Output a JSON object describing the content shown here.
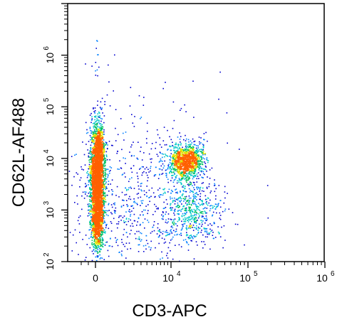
{
  "chart_data": {
    "type": "scatter",
    "subtype": "flow-cytometry-density-dot-plot",
    "title": "",
    "xlabel": "CD3-APC",
    "ylabel": "CD62L-AF488",
    "x_scale": "biexponential",
    "y_scale": "log",
    "xlim": [
      -300,
      1000000
    ],
    "ylim": [
      100,
      10000000
    ],
    "x_ticks": [
      {
        "base": "0",
        "exp": ""
      },
      {
        "base": "10",
        "exp": "4"
      },
      {
        "base": "10",
        "exp": "5"
      },
      {
        "base": "10",
        "exp": "6"
      }
    ],
    "y_ticks": [
      {
        "base": "10",
        "exp": "2"
      },
      {
        "base": "10",
        "exp": "3"
      },
      {
        "base": "10",
        "exp": "4"
      },
      {
        "base": "10",
        "exp": "5"
      },
      {
        "base": "10",
        "exp": "6"
      }
    ],
    "grid": false,
    "legend": "none",
    "colormap": [
      "#0000d0",
      "#0080ff",
      "#00c8c8",
      "#00c060",
      "#e0e000",
      "#ff6000"
    ],
    "populations": [
      {
        "x_center": 10,
        "y_center": 4000,
        "x_spread": 250,
        "y_log_sd": 0.45,
        "density": "very high"
      },
      {
        "x_center": 16000,
        "y_center": 10000,
        "x_spread": 4000,
        "y_log_sd": 0.12,
        "density": "high"
      },
      {
        "x_center": 18000,
        "y_center": 900,
        "x_spread": 8000,
        "y_log_sd": 0.25,
        "density": "low"
      }
    ]
  }
}
